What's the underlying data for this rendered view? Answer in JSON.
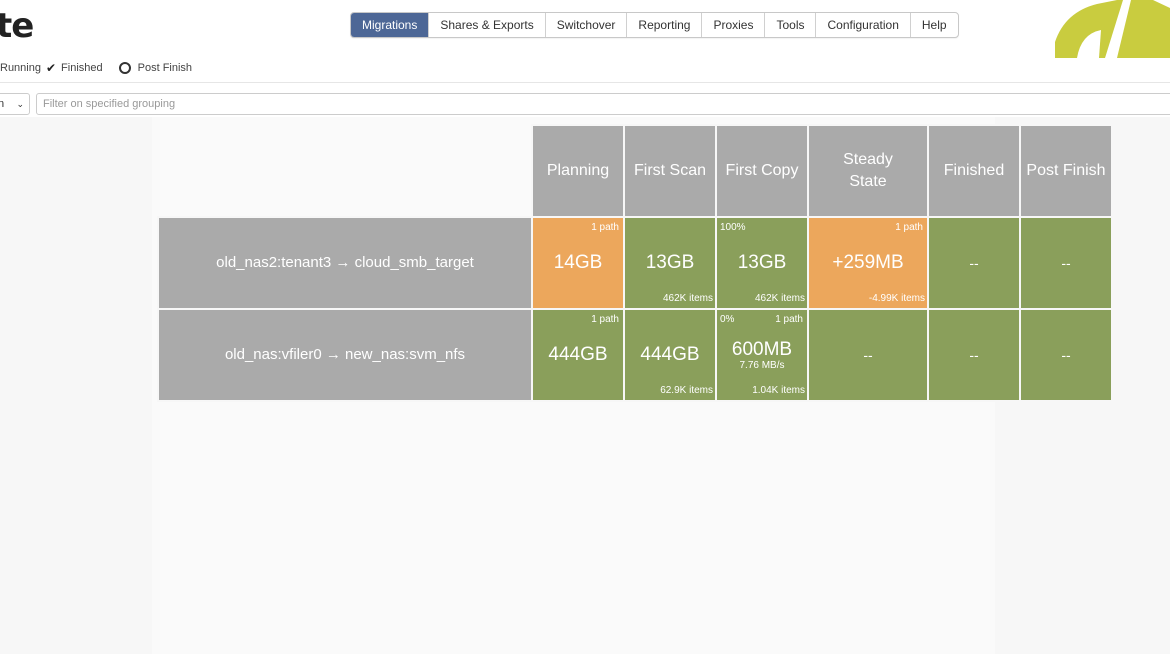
{
  "app": {
    "brand_fragment": "te"
  },
  "nav": {
    "tabs": [
      {
        "label": "Migrations",
        "active": true
      },
      {
        "label": "Shares & Exports",
        "active": false
      },
      {
        "label": "Switchover",
        "active": false
      },
      {
        "label": "Reporting",
        "active": false
      },
      {
        "label": "Proxies",
        "active": false
      },
      {
        "label": "Tools",
        "active": false
      },
      {
        "label": "Configuration",
        "active": false
      },
      {
        "label": "Help",
        "active": false
      }
    ]
  },
  "status_filters": {
    "running": "Running",
    "finished": "Finished",
    "post_finish": "Post Finish"
  },
  "grouping": {
    "select_value": "n",
    "filter_placeholder": "Filter on specified grouping"
  },
  "columns": [
    "Planning",
    "First Scan",
    "First Copy",
    "Steady State",
    "Finished",
    "Post Finish"
  ],
  "rows": [
    {
      "name": "old_nas2:tenant3 → cloud_smb_target",
      "cells": [
        {
          "status": "orange",
          "value": "14GB",
          "top_right": "1 path",
          "top_left": "",
          "sub": "",
          "bottom_right": ""
        },
        {
          "status": "green",
          "value": "13GB",
          "top_right": "",
          "top_left": "",
          "sub": "",
          "bottom_right": "462K items"
        },
        {
          "status": "green",
          "value": "13GB",
          "top_right": "",
          "top_left": "100%",
          "sub": "",
          "bottom_right": "462K items"
        },
        {
          "status": "orange",
          "value": "+259MB",
          "top_right": "1 path",
          "top_left": "",
          "sub": "",
          "bottom_right": "-4.99K items"
        },
        {
          "status": "green",
          "value": "--",
          "top_right": "",
          "top_left": "",
          "sub": "",
          "bottom_right": ""
        },
        {
          "status": "green",
          "value": "--",
          "top_right": "",
          "top_left": "",
          "sub": "",
          "bottom_right": ""
        }
      ]
    },
    {
      "name": "old_nas:vfiler0 → new_nas:svm_nfs",
      "cells": [
        {
          "status": "green",
          "value": "444GB",
          "top_right": "1 path",
          "top_left": "",
          "sub": "",
          "bottom_right": ""
        },
        {
          "status": "green",
          "value": "444GB",
          "top_right": "",
          "top_left": "",
          "sub": "",
          "bottom_right": "62.9K items"
        },
        {
          "status": "green",
          "value": "600MB",
          "top_right": "1 path",
          "top_left": "0%",
          "sub": "7.76 MB/s",
          "bottom_right": "1.04K items"
        },
        {
          "status": "green",
          "value": "--",
          "top_right": "",
          "top_left": "",
          "sub": "",
          "bottom_right": ""
        },
        {
          "status": "green",
          "value": "--",
          "top_right": "",
          "top_left": "",
          "sub": "",
          "bottom_right": ""
        },
        {
          "status": "green",
          "value": "--",
          "top_right": "",
          "top_left": "",
          "sub": "",
          "bottom_right": ""
        }
      ]
    }
  ],
  "colors": {
    "nav_active": "#4d6796",
    "header_gray": "#aaaaaa",
    "status_green": "#8a9f5b",
    "status_orange": "#eca75c",
    "logo_yellow": "#c9cc3f"
  }
}
